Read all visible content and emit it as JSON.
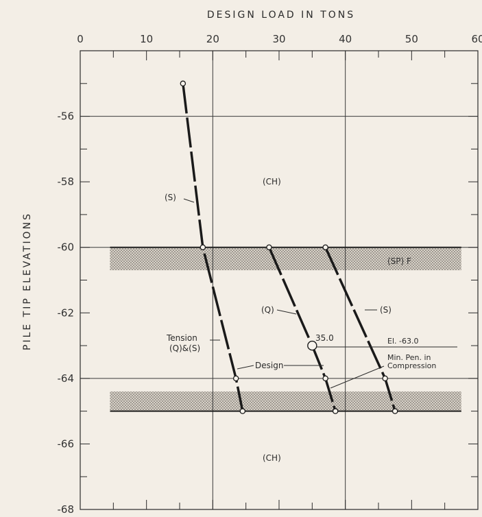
{
  "chart_data": {
    "type": "line",
    "xlabel": "DESIGN LOAD IN TONS",
    "ylabel": "PILE TIP ELEVATIONS",
    "xlim": [
      0,
      60
    ],
    "ylim": [
      -68,
      -54
    ],
    "x_ticks": [
      "0",
      "10",
      "20",
      "30",
      "40",
      "50",
      "60"
    ],
    "y_ticks": [
      "-56",
      "-58",
      "-60",
      "-62",
      "-64",
      "-66",
      "-68"
    ],
    "grid": "major lines every 20 tons and every 4 ft; minor ticks every 5 tons and 1 ft",
    "series": [
      {
        "name": "(S)",
        "label_top": "(S)",
        "label_bottom": "Tension (Q)&(S)",
        "points": [
          [
            15.5,
            -55.0
          ],
          [
            18.5,
            -60.0
          ],
          [
            23.5,
            -64.0
          ],
          [
            24.5,
            -65.0
          ]
        ]
      },
      {
        "name": "(Q)",
        "label": "(Q)",
        "points": [
          [
            28.5,
            -60.0
          ],
          [
            35.0,
            -63.0
          ],
          [
            37.0,
            -64.0
          ],
          [
            38.5,
            -65.0
          ]
        ]
      },
      {
        "name": "(S)",
        "label": "(S)",
        "points": [
          [
            37.0,
            -60.0
          ],
          [
            46.0,
            -64.0
          ],
          [
            47.5,
            -65.0
          ]
        ]
      }
    ],
    "soil_layers": [
      {
        "label": "(CH)",
        "top": -54,
        "bottom": -60,
        "hatched": false
      },
      {
        "label": "(SP) F",
        "top": -60,
        "bottom": -60.7,
        "hatched": true
      },
      {
        "label": "",
        "top": -64.4,
        "bottom": -65,
        "hatched": true
      },
      {
        "label": "(CH)",
        "top": -65,
        "bottom": -68,
        "hatched": false
      }
    ],
    "annotations": {
      "design_point": {
        "value": "35.0",
        "x": 35.0,
        "y": -63.0
      },
      "design_label": "Design",
      "tension_label_1": "Tension",
      "tension_label_2": "(Q)&(S)",
      "min_pen_1": "El. -63.0",
      "min_pen_2": "Min. Pen. in",
      "min_pen_3": "Compression",
      "ch_upper": "(CH)",
      "ch_lower": "(CH)",
      "sp_label": "(SP) F",
      "s_upper_label": "(S)",
      "q_label": "(Q)",
      "s_right_label": "(S)"
    }
  }
}
